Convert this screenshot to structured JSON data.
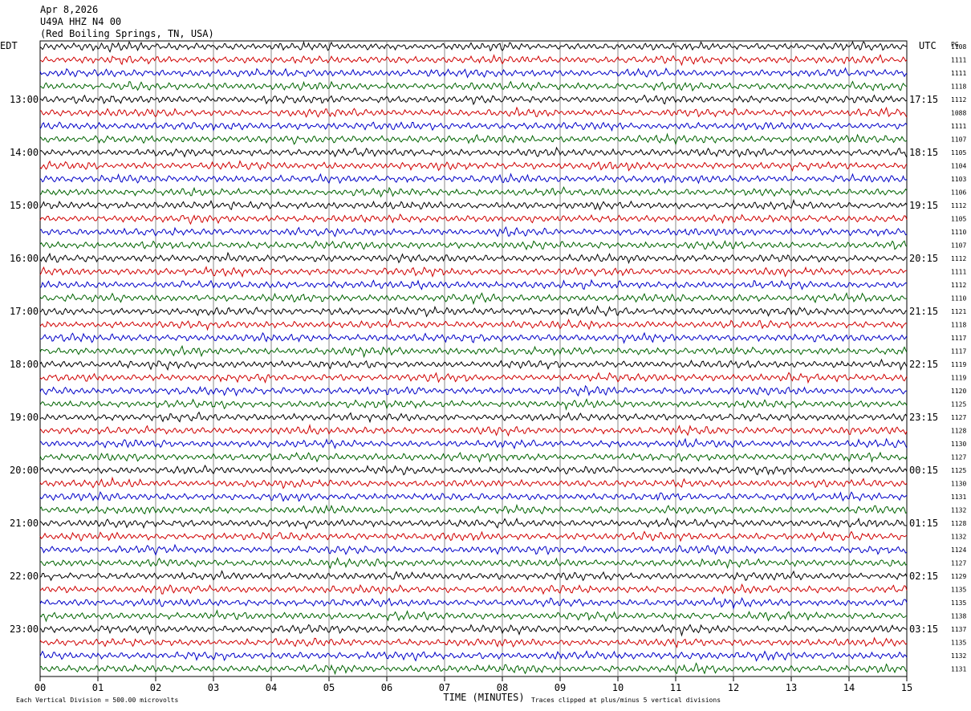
{
  "header": {
    "date": "Apr 8,2026",
    "station": "U49A HHZ N4 00",
    "location": "(Red Boiling Springs, TN, USA)"
  },
  "left_header": "EDT",
  "right_header": "UTC",
  "count_header": "PG",
  "edt_labels": [
    "13:00",
    "14:00",
    "15:00",
    "16:00",
    "17:00",
    "18:00",
    "19:00",
    "20:00",
    "21:00",
    "22:00",
    "23:00"
  ],
  "utc_labels": [
    "17:15",
    "18:15",
    "19:15",
    "20:15",
    "21:15",
    "22:15",
    "23:15",
    "00:15",
    "01:15",
    "02:15",
    "03:15"
  ],
  "row_counts": [
    1108,
    1111,
    1111,
    1118,
    1112,
    1088,
    1111,
    1107,
    1105,
    1104,
    1103,
    1106,
    1112,
    1105,
    1110,
    1107,
    1112,
    1111,
    1112,
    1110,
    1121,
    1118,
    1117,
    1117,
    1119,
    1119,
    1120,
    1125,
    1127,
    1128,
    1130,
    1127,
    1125,
    1130,
    1131,
    1132,
    1128,
    1132,
    1124,
    1127,
    1129,
    1135,
    1135,
    1138,
    1137,
    1135,
    1132,
    1131
  ],
  "trace_colors": [
    "#000000",
    "#d00000",
    "#0000c8",
    "#006400"
  ],
  "x_axis": {
    "ticks": [
      "00",
      "01",
      "02",
      "03",
      "04",
      "05",
      "06",
      "07",
      "08",
      "09",
      "10",
      "11",
      "12",
      "13",
      "14",
      "15"
    ],
    "label": "TIME (MINUTES)"
  },
  "footer": {
    "scale": "Each Vertical Division =  500.00 microvolts",
    "clip": "Traces clipped at plus/minus 5 vertical divisions"
  }
}
